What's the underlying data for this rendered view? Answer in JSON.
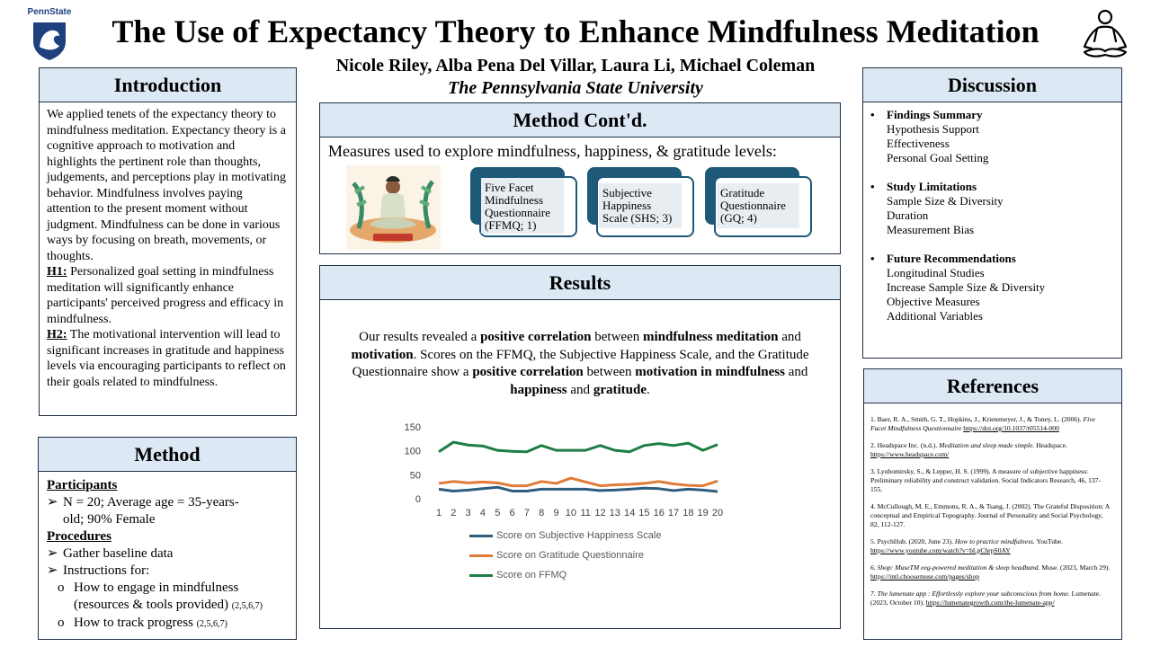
{
  "header": {
    "logo_text": "PennState",
    "title": "The Use of Expectancy Theory to Enhance Mindfulness Meditation",
    "authors": "Nicole Riley, Alba Pena Del Villar, Laura Li, Michael Coleman",
    "university": "The Pennsylvania State University"
  },
  "introduction": {
    "heading": "Introduction",
    "body": "We applied tenets of the expectancy theory to mindfulness meditation. Expectancy theory is a cognitive approach to motivation and highlights the pertinent role than thoughts, judgements, and perceptions play in motivating behavior. Mindfulness involves paying attention to the present moment without judgment. Mindfulness can be done in various ways by focusing on breath, movements, or thoughts.",
    "h1_label": "H1:",
    "h1_text": " Personalized goal setting in mindfulness meditation will significantly enhance participants' perceived progress and efficacy in mindfulness.",
    "h2_label": "H2:",
    "h2_text": " The motivational intervention will lead to significant increases in gratitude and happiness levels via encouraging participants to reflect on their goals related to mindfulness."
  },
  "method": {
    "heading": "Method",
    "participants_heading": "Participants",
    "participants_item": "N = 20; Average age = 35-years-old; 90% Female",
    "procedures_heading": "Procedures",
    "proc_item1": "Gather baseline data",
    "proc_item2": "Instructions for:",
    "sub1": "How to engage in mindfulness (resources & tools provided) ",
    "sub1_cite": "(2,5,6,7)",
    "sub2": "How to track progress ",
    "sub2_cite": "(2,5,6,7)"
  },
  "method_contd": {
    "heading": "Method Cont'd.",
    "intro": "Measures used to explore mindfulness, happiness, & gratitude levels:",
    "measures": [
      "Five Facet Mindfulness Questionnaire (FFMQ; 1)",
      "Subjective Happiness Scale (SHS; 3)",
      "Gratitude Questionnaire (GQ; 4)"
    ]
  },
  "results": {
    "heading": "Results",
    "p1": "Our results revealed a ",
    "b1": "positive correlation",
    "p2": " between ",
    "b2": "mindfulness meditation",
    "p3": " and ",
    "b3": "motivation",
    "p4": ". Scores on the FFMQ, the Subjective Happiness Scale, and the Gratitude Questionnaire show a ",
    "b4": "positive correlation",
    "p5": " between ",
    "b5": "motivation in mindfulness",
    "p6": " and ",
    "b6": "happiness",
    "p7": " and ",
    "b7": "gratitude",
    "p8": "."
  },
  "chart_data": {
    "type": "line",
    "x": [
      1,
      2,
      3,
      4,
      5,
      6,
      7,
      8,
      9,
      10,
      11,
      12,
      13,
      14,
      15,
      16,
      17,
      18,
      19,
      20
    ],
    "ylim": [
      0,
      150
    ],
    "yticks": [
      "150",
      "100",
      "50",
      "0"
    ],
    "series": [
      {
        "name": "Score on Subjective Happiness Scale",
        "color": "#2e5d7e",
        "values": [
          20,
          16,
          18,
          21,
          24,
          16,
          16,
          20,
          20,
          20,
          20,
          17,
          18,
          20,
          22,
          21,
          17,
          20,
          18,
          15
        ]
      },
      {
        "name": "Score on Gratitude Questionnaire",
        "color": "#e07b39",
        "values": [
          32,
          36,
          33,
          35,
          33,
          27,
          27,
          36,
          32,
          43,
          35,
          27,
          29,
          30,
          32,
          36,
          31,
          28,
          27,
          37
        ]
      },
      {
        "name": "Score on FFMQ",
        "color": "#1e7d46",
        "values": [
          98,
          118,
          112,
          110,
          101,
          99,
          98,
          111,
          101,
          101,
          101,
          111,
          101,
          98,
          111,
          115,
          111,
          116,
          101,
          113
        ]
      }
    ],
    "grid": false,
    "legend": "bottom"
  },
  "discussion": {
    "heading": "Discussion",
    "groups": [
      {
        "title": "Findings Summary",
        "items": [
          "Hypothesis Support",
          "Effectiveness",
          "Personal Goal Setting"
        ]
      },
      {
        "title": "Study Limitations",
        "items": [
          "Sample Size & Diversity",
          "Duration",
          "Measurement Bias"
        ]
      },
      {
        "title": "Future Recommendations",
        "items": [
          "Longitudinal Studies",
          "Increase Sample Size & Diversity",
          "Objective Measures",
          "Additional Variables"
        ]
      }
    ]
  },
  "references": {
    "heading": "References",
    "r1_text": "1. Baer, R. A., Smith, G. T., Hopkins, J., Krietemeyer, J., & Toney, L. (2006). ",
    "r1_ital": "Five Facet Mindfulness Questionnaire",
    "r1_link": "https://doi.org/10.1037/t05514-000",
    "r2_text": "2. Headspace Inc. (n.d.). ",
    "r2_ital": "Meditation and sleep made simple.",
    "r2_text2": " Headspace. ",
    "r2_link": "https://www.headspace.com/",
    "r3_text": "3. Lyubomirsky, S., & Lepper, H. S. (1999). A measure of subjective happiness: Preliminary reliability and construct validation. Social Indicators Research, 46, 137-155.",
    "r4_text": "4. McCullough, M. E., Emmons, R. A., & Tsang, J. (2002). The Grateful Disposition: A conceptual and Empirical Topography. Journal of Personality and Social Psychology, 82, 112-127.",
    "r5_text": "5. PsychHub. (2020, June 23). ",
    "r5_ital": "How to practice mindfulness.",
    "r5_text2": " YouTube. ",
    "r5_link": "https://www.youtube.com/watch?v=bLpChrpS0AY",
    "r6_ital": "6. Shop: MuseTM eeg-powered meditation & sleep headband.",
    "r6_text": " Muse. (2023, March 29). ",
    "r6_link": "https://intl.choosemuse.com/pages/shop",
    "r7_ital": "7. The lumenate app : Effortlessly explore your subconscious from home.",
    "r7_text": " Lumenate. (2023, October 10). ",
    "r7_link": "https://lumenategrowth.com/the-lumenate-app/"
  }
}
